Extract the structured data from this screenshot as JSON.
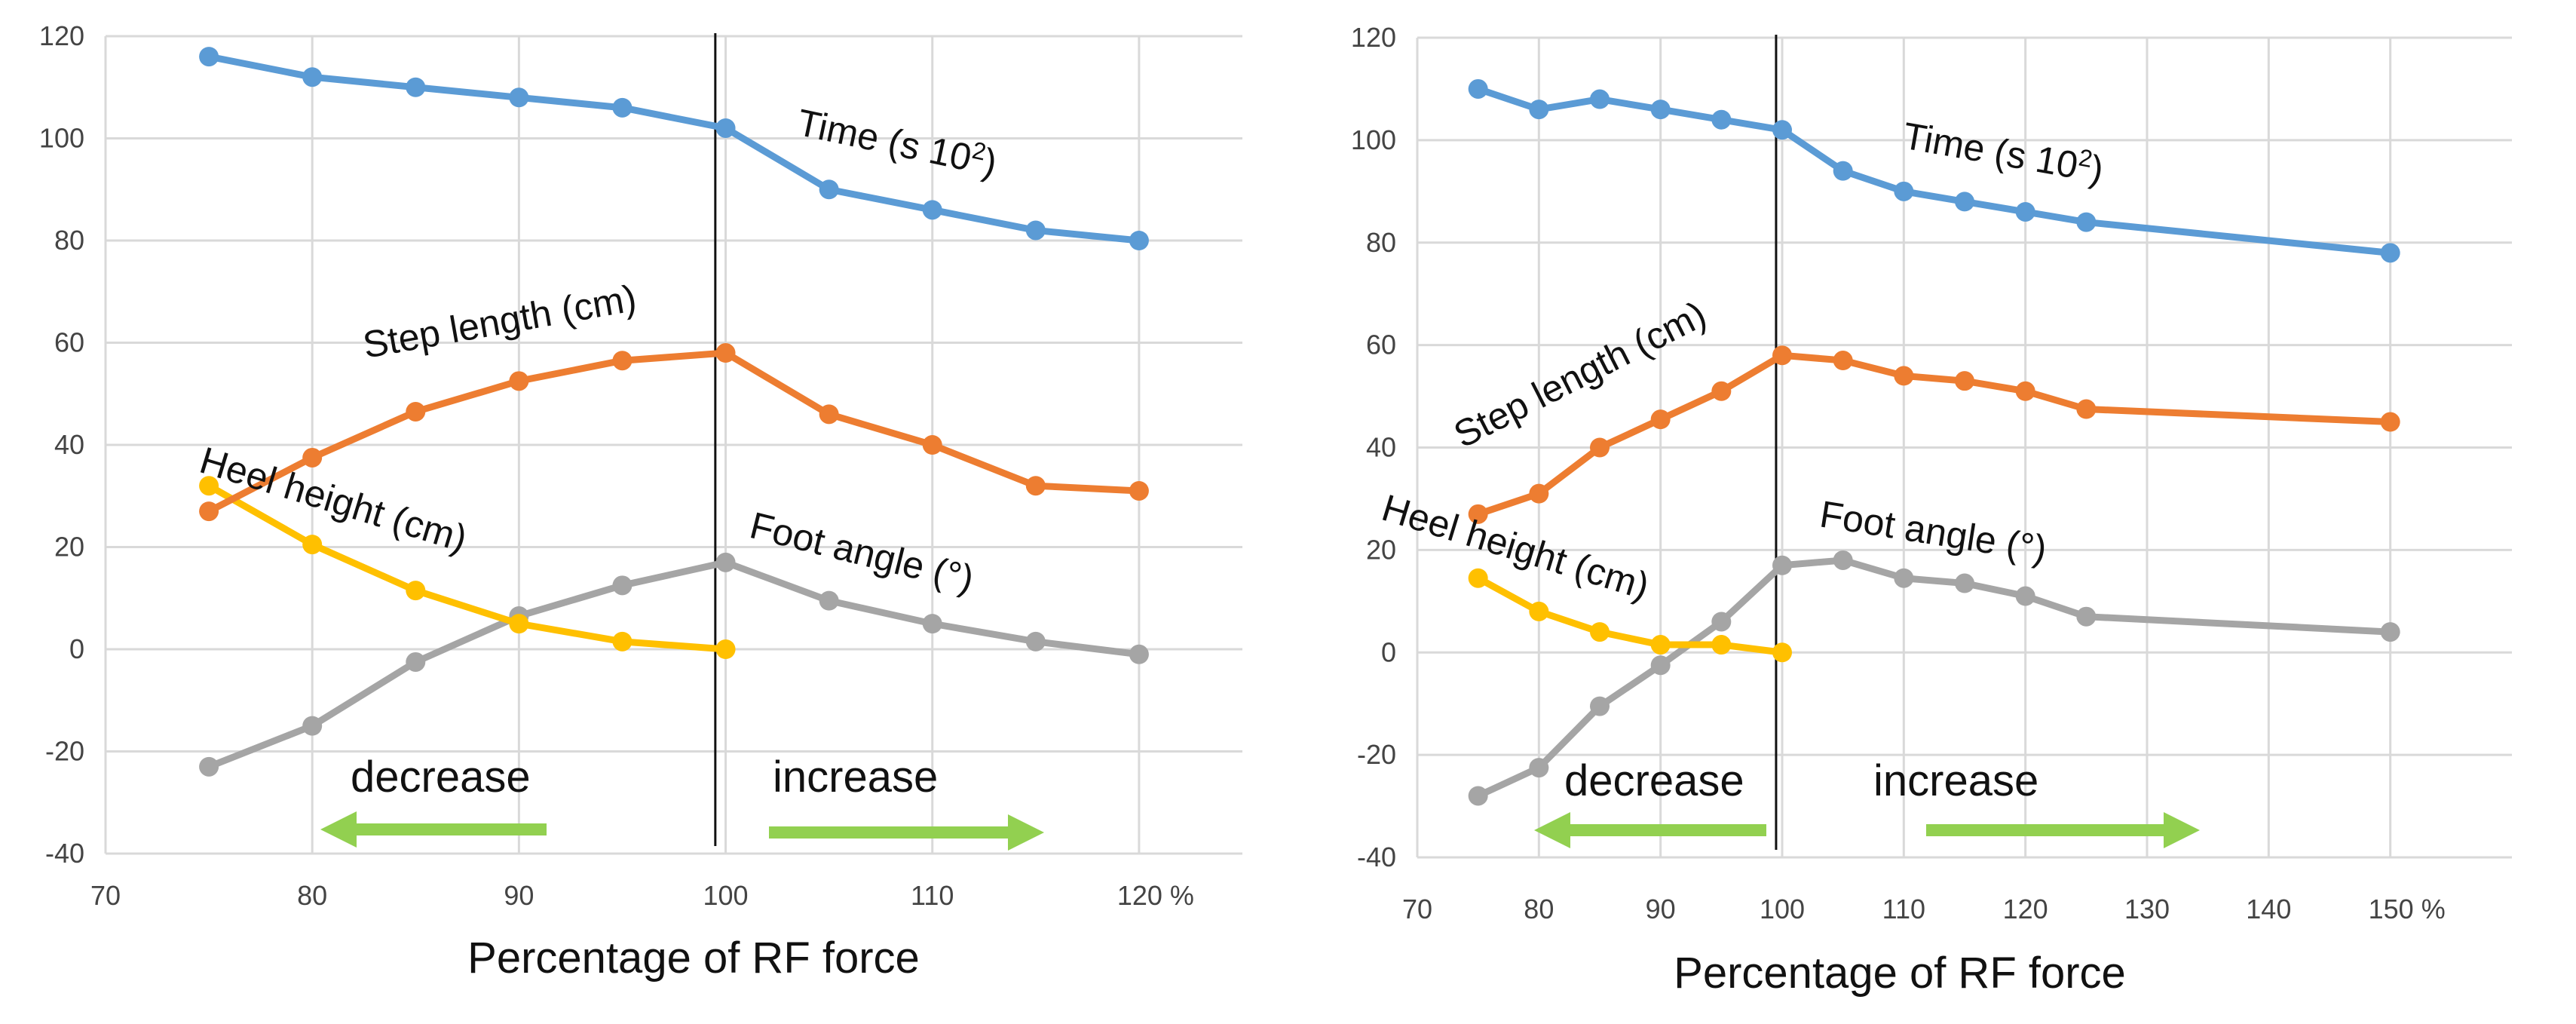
{
  "chart_data": [
    {
      "type": "line",
      "xlabel": "Percentage of RF force",
      "x_unit": "%",
      "xlim": [
        70,
        125
      ],
      "x_ticks": [
        70,
        80,
        90,
        100,
        110,
        120
      ],
      "x_tick_labels": [
        "70",
        "80",
        "90",
        "100",
        "110",
        "120 %"
      ],
      "ylim": [
        -40,
        120
      ],
      "y_ticks": [
        -40,
        -20,
        0,
        20,
        40,
        60,
        80,
        100,
        120
      ],
      "grid": true,
      "reference_line_x": 99.5,
      "series": [
        {
          "name": "Time",
          "label_main": "Time (s 10",
          "label_sup": "2",
          "label_end": ")",
          "color": "#5B9BD5",
          "points": [
            [
              75,
              116
            ],
            [
              80,
              112
            ],
            [
              85,
              110
            ],
            [
              90,
              108
            ],
            [
              95,
              106
            ],
            [
              100,
              102
            ],
            [
              105,
              90
            ],
            [
              110,
              86
            ],
            [
              115,
              82
            ],
            [
              120,
              80
            ]
          ]
        },
        {
          "name": "Step length",
          "label_main": "Step length (cm)",
          "color": "#ED7D31",
          "points": [
            [
              75,
              27
            ],
            [
              80,
              37.5
            ],
            [
              85,
              46.5
            ],
            [
              90,
              52.5
            ],
            [
              95,
              56.5
            ],
            [
              100,
              58
            ],
            [
              105,
              46
            ],
            [
              110,
              40
            ],
            [
              115,
              32
            ],
            [
              120,
              31
            ]
          ]
        },
        {
          "name": "Heel height",
          "label_main": "Heel height (cm)",
          "color": "#FFC000",
          "points": [
            [
              75,
              32
            ],
            [
              80,
              20.5
            ],
            [
              85,
              11.5
            ],
            [
              90,
              5
            ],
            [
              95,
              1.5
            ],
            [
              100,
              0
            ]
          ]
        },
        {
          "name": "Foot angle",
          "label_main": "Foot angle (°)",
          "color": "#A5A5A5",
          "points": [
            [
              75,
              -23
            ],
            [
              80,
              -15
            ],
            [
              85,
              -2.5
            ],
            [
              90,
              6.5
            ],
            [
              95,
              12.5
            ],
            [
              100,
              17
            ],
            [
              105,
              9.5
            ],
            [
              110,
              5
            ],
            [
              115,
              1.5
            ],
            [
              120,
              -1
            ]
          ]
        }
      ],
      "annotations": {
        "decrease": "decrease",
        "increase": "increase",
        "arrow_color": "#92D050"
      }
    },
    {
      "type": "line",
      "xlabel": "Percentage of RF force",
      "x_unit": "%",
      "xlim": [
        70,
        160
      ],
      "x_ticks": [
        70,
        80,
        90,
        100,
        110,
        120,
        130,
        140,
        150
      ],
      "x_tick_labels": [
        "70",
        "80",
        "90",
        "100",
        "110",
        "120",
        "130",
        "140",
        "150 %"
      ],
      "ylim": [
        -40,
        120
      ],
      "y_ticks": [
        -40,
        -20,
        0,
        20,
        40,
        60,
        80,
        100,
        120
      ],
      "grid": true,
      "reference_line_x": 99.5,
      "series": [
        {
          "name": "Time",
          "label_main": "Time (s 10",
          "label_sup": "2",
          "label_end": ")",
          "color": "#5B9BD5",
          "points": [
            [
              75,
              110
            ],
            [
              80,
              106
            ],
            [
              85,
              108
            ],
            [
              90,
              106
            ],
            [
              95,
              104
            ],
            [
              100,
              102
            ],
            [
              105,
              94
            ],
            [
              110,
              90
            ],
            [
              115,
              88
            ],
            [
              120,
              86
            ],
            [
              125,
              84
            ],
            [
              150,
              78
            ]
          ]
        },
        {
          "name": "Step length",
          "label_main": "Step length (cm)",
          "color": "#ED7D31",
          "points": [
            [
              75,
              27
            ],
            [
              80,
              31
            ],
            [
              85,
              40
            ],
            [
              90,
              45.5
            ],
            [
              95,
              51
            ],
            [
              100,
              58
            ],
            [
              105,
              57
            ],
            [
              110,
              54
            ],
            [
              115,
              53
            ],
            [
              120,
              51
            ],
            [
              125,
              47.5
            ],
            [
              150,
              45
            ]
          ]
        },
        {
          "name": "Heel height",
          "label_main": "Heel height (cm)",
          "color": "#FFC000",
          "points": [
            [
              75,
              14.5
            ],
            [
              80,
              8
            ],
            [
              85,
              4
            ],
            [
              90,
              1.5
            ],
            [
              95,
              1.5
            ],
            [
              100,
              0
            ]
          ]
        },
        {
          "name": "Foot angle",
          "label_main": "Foot angle (°)",
          "color": "#A5A5A5",
          "points": [
            [
              75,
              -28
            ],
            [
              80,
              -22.5
            ],
            [
              85,
              -10.5
            ],
            [
              90,
              -2.5
            ],
            [
              95,
              6
            ],
            [
              100,
              17
            ],
            [
              105,
              18
            ],
            [
              110,
              14.5
            ],
            [
              115,
              13.5
            ],
            [
              120,
              11
            ],
            [
              125,
              7
            ],
            [
              150,
              4
            ]
          ]
        }
      ],
      "annotations": {
        "decrease": "decrease",
        "increase": "increase",
        "arrow_color": "#92D050"
      }
    }
  ]
}
